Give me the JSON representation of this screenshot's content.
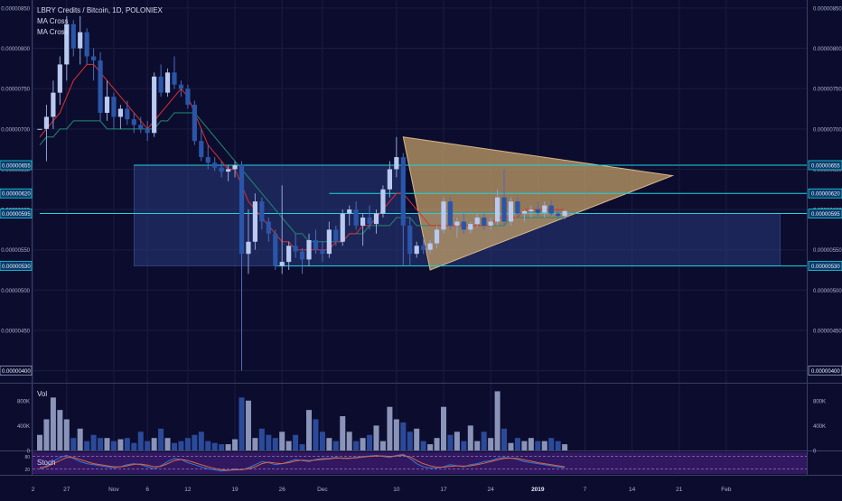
{
  "chart_data": {
    "type": "candlestick",
    "title": "LBRY Credits / Bitcoin, 1D, POLONIEX",
    "indicators": [
      "MA Cross",
      "MA Cross"
    ],
    "price_axis": {
      "ticks": [
        "0.00000850",
        "0.00000800",
        "0.00000750",
        "0.00000700",
        "0.00000650",
        "0.00000600",
        "0.00000550",
        "0.00000500",
        "0.00000450",
        "0.00000400"
      ],
      "highlighted_levels": [
        "0.00000655",
        "0.00000620",
        "0.00000595",
        "0.00000530",
        "0.00000400"
      ],
      "ylim": [
        3.85e-06,
        8.6e-06
      ]
    },
    "x_axis": {
      "ticks": [
        "2",
        "27",
        "Nov",
        "6",
        "12",
        "19",
        "26",
        "Dec",
        "10",
        "17",
        "24",
        "2019",
        "7",
        "14",
        "21",
        "Feb"
      ]
    },
    "candles": [
      [
        7e-06,
        7e-06,
        7e-06,
        7e-06
      ],
      [
        7e-06,
        7.3e-06,
        6.6e-06,
        7.15e-06
      ],
      [
        7.15e-06,
        7.6e-06,
        7e-06,
        7.45e-06
      ],
      [
        7.45e-06,
        7.9e-06,
        7.3e-06,
        7.8e-06
      ],
      [
        7.8e-06,
        8.4e-06,
        7.6e-06,
        8.3e-06
      ],
      [
        8.3e-06,
        8.35e-06,
        7.9e-06,
        8e-06
      ],
      [
        8e-06,
        8.4e-06,
        7.8e-06,
        8.2e-06
      ],
      [
        8.2e-06,
        8.25e-06,
        7.8e-06,
        7.9e-06
      ],
      [
        7.9e-06,
        8e-06,
        7.6e-06,
        7.85e-06
      ],
      [
        7.85e-06,
        7.95e-06,
        7.1e-06,
        7.2e-06
      ],
      [
        7.2e-06,
        7.6e-06,
        7.1e-06,
        7.4e-06
      ],
      [
        7.4e-06,
        7.45e-06,
        7e-06,
        7.15e-06
      ],
      [
        7.15e-06,
        7.3e-06,
        7e-06,
        7.25e-06
      ],
      [
        7.25e-06,
        7.35e-06,
        7.05e-06,
        7.12e-06
      ],
      [
        7.12e-06,
        7.2e-06,
        6.95e-06,
        7.05e-06
      ],
      [
        7.05e-06,
        7.15e-06,
        6.95e-06,
        7e-06
      ],
      [
        7e-06,
        7.1e-06,
        6.85e-06,
        6.95e-06
      ],
      [
        6.95e-06,
        7.7e-06,
        6.9e-06,
        7.65e-06
      ],
      [
        7.65e-06,
        7.8e-06,
        7.4e-06,
        7.45e-06
      ],
      [
        7.45e-06,
        7.75e-06,
        7.4e-06,
        7.7e-06
      ],
      [
        7.7e-06,
        7.9e-06,
        7.5e-06,
        7.55e-06
      ],
      [
        7.55e-06,
        7.6e-06,
        7.4e-06,
        7.5e-06
      ],
      [
        7.5e-06,
        7.55e-06,
        7.25e-06,
        7.3e-06
      ],
      [
        7.3e-06,
        7.35e-06,
        6.8e-06,
        6.85e-06
      ],
      [
        6.85e-06,
        7e-06,
        6.6e-06,
        6.65e-06
      ],
      [
        6.65e-06,
        6.8e-06,
        6.5e-06,
        6.58e-06
      ],
      [
        6.58e-06,
        6.65e-06,
        6.48e-06,
        6.52e-06
      ],
      [
        6.52e-06,
        6.6e-06,
        6.4e-06,
        6.47e-06
      ],
      [
        6.47e-06,
        6.55e-06,
        6.35e-06,
        6.5e-06
      ],
      [
        6.5e-06,
        6.6e-06,
        6.4e-06,
        6.55e-06
      ],
      [
        6.55e-06,
        6.6e-06,
        4e-06,
        5.45e-06
      ],
      [
        5.45e-06,
        6e-06,
        5.2e-06,
        5.6e-06
      ],
      [
        5.6e-06,
        6.2e-06,
        5.5e-06,
        6.1e-06
      ],
      [
        6.1e-06,
        6.15e-06,
        5.75e-06,
        5.85e-06
      ],
      [
        5.85e-06,
        5.9e-06,
        5.6e-06,
        5.7e-06
      ],
      [
        5.7e-06,
        5.75e-06,
        5.25e-06,
        5.3e-06
      ],
      [
        5.3e-06,
        6.3e-06,
        5.2e-06,
        5.35e-06
      ],
      [
        5.35e-06,
        5.6e-06,
        5.25e-06,
        5.55e-06
      ],
      [
        5.55e-06,
        5.7e-06,
        5.4e-06,
        5.48e-06
      ],
      [
        5.48e-06,
        5.52e-06,
        5.2e-06,
        5.38e-06
      ],
      [
        5.38e-06,
        5.7e-06,
        5.3e-06,
        5.62e-06
      ],
      [
        5.62e-06,
        5.75e-06,
        5.45e-06,
        5.5e-06
      ],
      [
        5.5e-06,
        5.6e-06,
        5.35e-06,
        5.45e-06
      ],
      [
        5.45e-06,
        5.85e-06,
        5.4e-06,
        5.75e-06
      ],
      [
        5.75e-06,
        5.8e-06,
        5.55e-06,
        5.6e-06
      ],
      [
        5.6e-06,
        6e-06,
        5.55e-06,
        5.95e-06
      ],
      [
        5.95e-06,
        6.05e-06,
        5.8e-06,
        6e-06
      ],
      [
        6e-06,
        6.1e-06,
        5.75e-06,
        5.8e-06
      ],
      [
        5.8e-06,
        5.95e-06,
        5.55e-06,
        5.9e-06
      ],
      [
        5.9e-06,
        6.05e-06,
        5.75e-06,
        5.82e-06
      ],
      [
        5.82e-06,
        6e-06,
        5.7e-06,
        5.95e-06
      ],
      [
        5.95e-06,
        6.3e-06,
        5.9e-06,
        6.25e-06
      ],
      [
        6.25e-06,
        6.6e-06,
        6.15e-06,
        6.5e-06
      ],
      [
        6.5e-06,
        6.9e-06,
        6.4e-06,
        6.65e-06
      ],
      [
        6.65e-06,
        6.7e-06,
        5.3e-06,
        5.8e-06
      ],
      [
        5.8e-06,
        5.9e-06,
        5.3e-06,
        5.45e-06
      ],
      [
        5.45e-06,
        5.6e-06,
        5.4e-06,
        5.55e-06
      ],
      [
        5.55e-06,
        5.65e-06,
        5.45e-06,
        5.5e-06
      ],
      [
        5.5e-06,
        5.62e-06,
        5.45e-06,
        5.58e-06
      ],
      [
        5.58e-06,
        5.8e-06,
        5.52e-06,
        5.75e-06
      ],
      [
        5.75e-06,
        6.15e-06,
        5.7e-06,
        6.1e-06
      ],
      [
        6.1e-06,
        6.15e-06,
        5.75e-06,
        5.8e-06
      ],
      [
        5.8e-06,
        5.9e-06,
        5.65e-06,
        5.85e-06
      ],
      [
        5.85e-06,
        5.95e-06,
        5.7e-06,
        5.75e-06
      ],
      [
        5.75e-06,
        5.85e-06,
        5.7e-06,
        5.82e-06
      ],
      [
        5.82e-06,
        5.95e-06,
        5.78e-06,
        5.9e-06
      ],
      [
        5.9e-06,
        5.95e-06,
        5.75e-06,
        5.8e-06
      ],
      [
        5.8e-06,
        5.9e-06,
        5.75e-06,
        5.85e-06
      ],
      [
        5.85e-06,
        6.25e-06,
        5.8e-06,
        6.15e-06
      ],
      [
        6.15e-06,
        6.5e-06,
        5.8e-06,
        5.85e-06
      ],
      [
        5.85e-06,
        6.15e-06,
        5.8e-06,
        6.1e-06
      ],
      [
        6.1e-06,
        6.15e-06,
        5.9e-06,
        5.95e-06
      ],
      [
        5.95e-06,
        6e-06,
        5.85e-06,
        5.98e-06
      ],
      [
        5.98e-06,
        6.05e-06,
        5.9e-06,
        6e-06
      ],
      [
        6e-06,
        6.1e-06,
        5.92e-06,
        5.96e-06
      ],
      [
        5.96e-06,
        6.1e-06,
        5.9e-06,
        6.05e-06
      ],
      [
        6.05e-06,
        6.12e-06,
        5.92e-06,
        5.95e-06
      ],
      [
        5.95e-06,
        6e-06,
        5.88e-06,
        5.92e-06
      ],
      [
        5.92e-06,
        6e-06,
        5.88e-06,
        5.98e-06
      ]
    ],
    "ma_fast": [
      6.9e-06,
      7e-06,
      7.1e-06,
      7.2e-06,
      7.4e-06,
      7.6e-06,
      7.7e-06,
      7.8e-06,
      7.8e-06,
      7.7e-06,
      7.6e-06,
      7.5e-06,
      7.4e-06,
      7.3e-06,
      7.2e-06,
      7.1e-06,
      7e-06,
      7.1e-06,
      7.2e-06,
      7.3e-06,
      7.4e-06,
      7.5e-06,
      7.4e-06,
      7.2e-06,
      7e-06,
      6.8e-06,
      6.7e-06,
      6.6e-06,
      6.5e-06,
      6.5e-06,
      6.3e-06,
      6.1e-06,
      6e-06,
      5.9e-06,
      5.8e-06,
      5.7e-06,
      5.6e-06,
      5.6e-06,
      5.5e-06,
      5.5e-06,
      5.5e-06,
      5.5e-06,
      5.5e-06,
      5.5e-06,
      5.6e-06,
      5.6e-06,
      5.7e-06,
      5.7e-06,
      5.8e-06,
      5.8e-06,
      5.9e-06,
      6e-06,
      6.1e-06,
      6.2e-06,
      6.2e-06,
      6.1e-06,
      6e-06,
      5.9e-06,
      5.8e-06,
      5.8e-06,
      5.8e-06,
      5.8e-06,
      5.8e-06,
      5.8e-06,
      5.8e-06,
      5.8e-06,
      5.8e-06,
      5.8e-06,
      5.9e-06,
      5.9e-06,
      5.9e-06,
      5.9e-06,
      6e-06,
      6e-06,
      6e-06,
      6e-06,
      6e-06,
      6e-06,
      6e-06
    ],
    "ma_slow": [
      6.8e-06,
      6.9e-06,
      6.9e-06,
      7e-06,
      7e-06,
      7.1e-06,
      7.1e-06,
      7.1e-06,
      7.1e-06,
      7.1e-06,
      7e-06,
      7e-06,
      7e-06,
      7e-06,
      7e-06,
      7e-06,
      7e-06,
      7e-06,
      7.1e-06,
      7.1e-06,
      7.2e-06,
      7.2e-06,
      7.2e-06,
      7.2e-06,
      7.1e-06,
      7e-06,
      6.9e-06,
      6.8e-06,
      6.7e-06,
      6.6e-06,
      6.5e-06,
      6.4e-06,
      6.3e-06,
      6.2e-06,
      6.1e-06,
      6e-06,
      5.9e-06,
      5.8e-06,
      5.7e-06,
      5.7e-06,
      5.6e-06,
      5.6e-06,
      5.6e-06,
      5.6e-06,
      5.6e-06,
      5.6e-06,
      5.7e-06,
      5.7e-06,
      5.7e-06,
      5.8e-06,
      5.8e-06,
      5.8e-06,
      5.8e-06,
      5.9e-06,
      5.9e-06,
      5.9e-06,
      5.8e-06,
      5.8e-06,
      5.8e-06,
      5.8e-06,
      5.8e-06,
      5.8e-06,
      5.8e-06,
      5.8e-06,
      5.8e-06,
      5.8e-06,
      5.8e-06,
      5.8e-06,
      5.8e-06,
      5.8e-06,
      5.9e-06,
      5.9e-06,
      5.9e-06,
      5.9e-06,
      5.9e-06,
      5.9e-06,
      5.9e-06,
      5.9e-06,
      5.9e-06
    ],
    "volume": {
      "label": "Vol",
      "ticks": [
        "800K",
        "400K",
        "0"
      ],
      "values": [
        250,
        500,
        850,
        650,
        500,
        200,
        350,
        150,
        250,
        200,
        200,
        150,
        180,
        200,
        120,
        300,
        150,
        200,
        350,
        200,
        120,
        150,
        200,
        250,
        300,
        150,
        120,
        100,
        100,
        180,
        850,
        800,
        200,
        350,
        250,
        200,
        300,
        150,
        250,
        100,
        650,
        500,
        300,
        200,
        150,
        550,
        300,
        150,
        200,
        250,
        400,
        150,
        700,
        500,
        450,
        300,
        350,
        150,
        100,
        200,
        700,
        250,
        300,
        150,
        400,
        150,
        300,
        200,
        950,
        350,
        120,
        200,
        150,
        200,
        150,
        150,
        200,
        150,
        100
      ],
      "colors_up_down": [
        "#2c4a9a",
        "#8a93b8"
      ]
    },
    "stoch": {
      "label": "Stoch",
      "k": [
        20,
        35,
        55,
        75,
        85,
        70,
        55,
        45,
        40,
        35,
        30,
        25,
        30,
        40,
        45,
        40,
        30,
        20,
        35,
        55,
        70,
        65,
        50,
        40,
        30,
        20,
        15,
        10,
        12,
        20,
        15,
        25,
        40,
        55,
        50,
        40,
        45,
        55,
        65,
        60,
        55,
        65,
        70,
        70,
        75,
        70,
        70,
        75,
        80,
        82,
        85,
        80,
        75,
        85,
        90,
        70,
        45,
        30,
        25,
        25,
        30,
        40,
        35,
        30,
        40,
        45,
        55,
        60,
        70,
        75,
        72,
        65,
        55,
        50,
        45,
        40,
        35,
        30,
        25
      ],
      "d": [
        25,
        30,
        45,
        60,
        75,
        75,
        65,
        55,
        45,
        40,
        35,
        30,
        30,
        35,
        42,
        43,
        38,
        30,
        32,
        45,
        60,
        65,
        60,
        50,
        40,
        30,
        22,
        16,
        13,
        15,
        16,
        20,
        30,
        45,
        52,
        48,
        45,
        50,
        58,
        62,
        60,
        62,
        65,
        68,
        72,
        72,
        72,
        73,
        77,
        80,
        82,
        82,
        80,
        82,
        85,
        78,
        60,
        45,
        35,
        28,
        28,
        32,
        35,
        33,
        35,
        40,
        47,
        55,
        63,
        70,
        72,
        70,
        63,
        57,
        50,
        45,
        40,
        35,
        30
      ],
      "ticks": [
        "80",
        "20"
      ]
    },
    "overlays": {
      "box1": {
        "x0": 14,
        "x1": 54,
        "y0": 6.55e-06,
        "y1": 5.3e-06
      },
      "box2": {
        "x0": 54,
        "x1": 110,
        "y0": 5.95e-06,
        "y1": 5.3e-06
      },
      "triangle": {
        "p1": [
          54,
          6.9e-06
        ],
        "p2": [
          94,
          6.42e-06
        ],
        "p3": [
          58,
          5.25e-06
        ]
      },
      "hlines": [
        6.55e-06,
        6.2e-06,
        5.95e-06,
        5.3e-06
      ],
      "hline_starts": [
        14,
        43,
        0,
        35
      ]
    },
    "colors": {
      "background": "#0c0d2e",
      "up_candle": "#b9c9f0",
      "down_candle": "#2a55a8",
      "ma_fast": "#e0302c",
      "ma_slow": "#1f8a72",
      "hline": "#19d5e0",
      "box": "#2a3a7a",
      "triangle": "#c9a36a",
      "grid": "#1a1c40",
      "stoch_bg": "#3a1a6a",
      "stoch_k": "#2b7bd6",
      "stoch_d": "#e0663b"
    }
  }
}
